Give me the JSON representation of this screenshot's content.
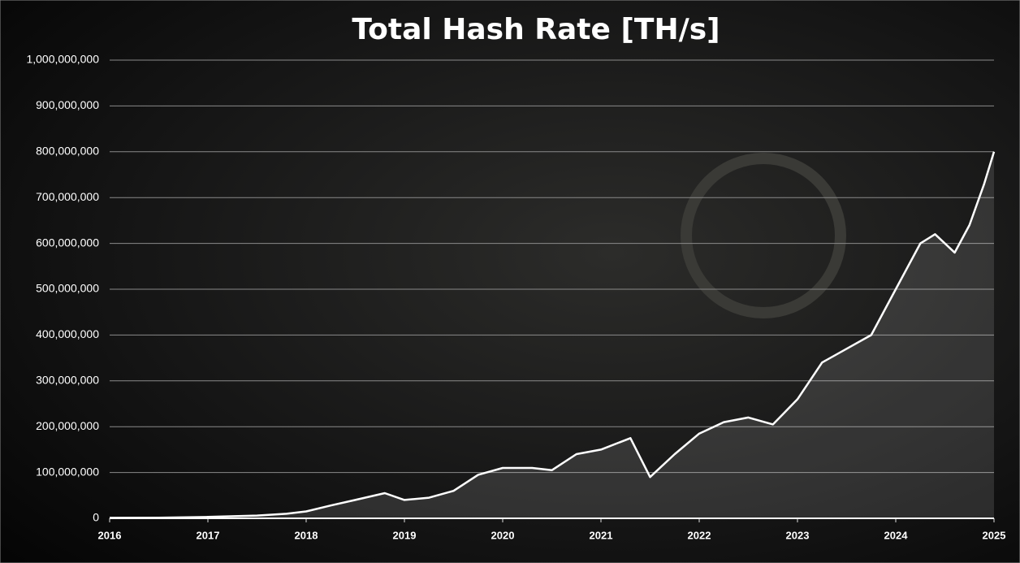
{
  "chart_data": {
    "type": "area",
    "title": "Total Hash Rate [TH/s]",
    "x": [
      2016.0,
      2016.5,
      2017.0,
      2017.5,
      2017.8,
      2018.0,
      2018.25,
      2018.5,
      2018.8,
      2019.0,
      2019.25,
      2019.5,
      2019.75,
      2020.0,
      2020.3,
      2020.5,
      2020.75,
      2021.0,
      2021.3,
      2021.5,
      2021.75,
      2022.0,
      2022.25,
      2022.5,
      2022.75,
      2023.0,
      2023.25,
      2023.5,
      2023.75,
      2024.0,
      2024.25,
      2024.4,
      2024.6,
      2024.75,
      2024.9,
      2025.0
    ],
    "series": [
      {
        "name": "Total Hash Rate",
        "color": "#ffffff",
        "values": [
          1000000,
          1500000,
          3000000,
          6000000,
          10000000,
          15000000,
          28000000,
          40000000,
          55000000,
          40000000,
          45000000,
          60000000,
          95000000,
          110000000,
          110000000,
          105000000,
          140000000,
          150000000,
          175000000,
          90000000,
          140000000,
          185000000,
          210000000,
          220000000,
          205000000,
          260000000,
          340000000,
          370000000,
          400000000,
          500000000,
          600000000,
          620000000,
          580000000,
          640000000,
          730000000,
          800000000
        ]
      }
    ],
    "xlim": [
      2016,
      2025
    ],
    "xticks": [
      2016,
      2017,
      2018,
      2019,
      2020,
      2021,
      2022,
      2023,
      2024,
      2025
    ],
    "ylim": [
      0,
      1000000000
    ],
    "yticks": [
      0,
      {
        "value": 100000000,
        "label": "100,000,000"
      },
      {
        "value": 200000000,
        "label": "200,000,000"
      },
      {
        "value": 300000000,
        "label": "300,000,000"
      },
      {
        "value": 400000000,
        "label": "400,000,000"
      },
      {
        "value": 500000000,
        "label": "500,000,000"
      },
      {
        "value": 600000000,
        "label": "600,000,000"
      },
      {
        "value": 700000000,
        "label": "700,000,000"
      },
      {
        "value": 800000000,
        "label": "800,000,000"
      },
      {
        "value": 900000000,
        "label": "900,000,000"
      },
      {
        "value": 1000000000,
        "label": "1,000,000,000"
      }
    ],
    "grid": true
  }
}
